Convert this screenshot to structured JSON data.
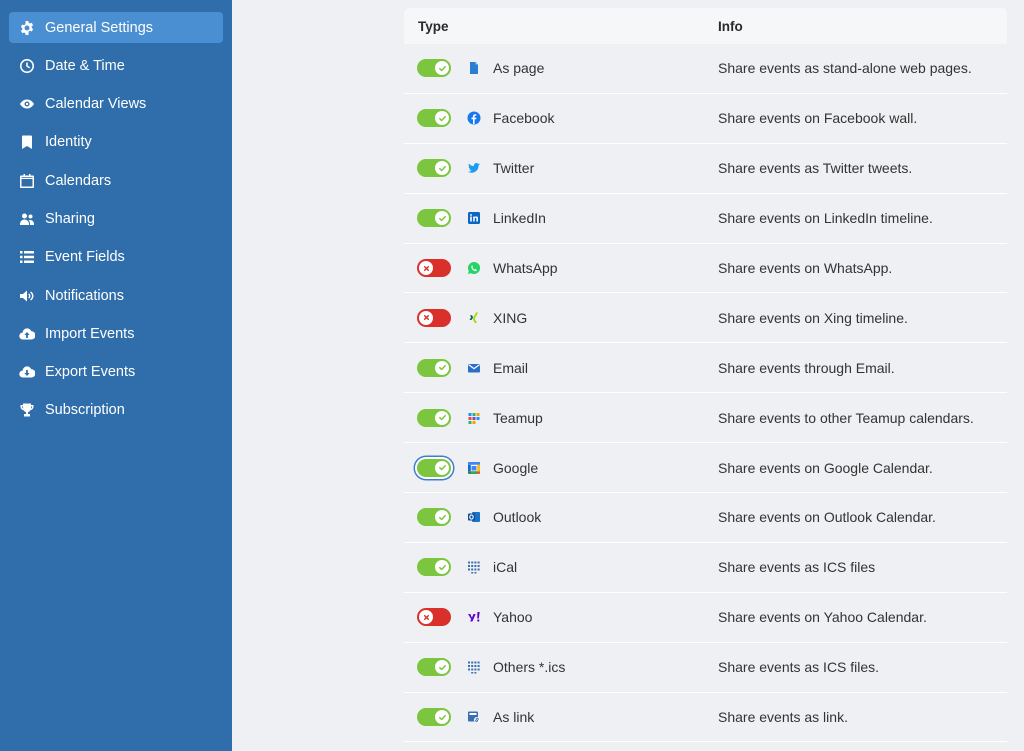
{
  "sidebar": {
    "items": [
      {
        "label": "General Settings",
        "icon": "gear-icon",
        "active": true
      },
      {
        "label": "Date & Time",
        "icon": "clock-icon"
      },
      {
        "label": "Calendar Views",
        "icon": "eye-icon"
      },
      {
        "label": "Identity",
        "icon": "bookmark-icon"
      },
      {
        "label": "Calendars",
        "icon": "calendar-icon"
      },
      {
        "label": "Sharing",
        "icon": "users-icon"
      },
      {
        "label": "Event Fields",
        "icon": "list-icon"
      },
      {
        "label": "Notifications",
        "icon": "speaker-icon"
      },
      {
        "label": "Import Events",
        "icon": "cloud-upload-icon"
      },
      {
        "label": "Export Events",
        "icon": "cloud-download-icon"
      },
      {
        "label": "Subscription",
        "icon": "trophy-icon"
      }
    ]
  },
  "table": {
    "headers": {
      "type": "Type",
      "info": "Info"
    },
    "rows": [
      {
        "name": "As page",
        "info": "Share events as stand-alone web pages.",
        "enabled": true,
        "icon": "page-icon"
      },
      {
        "name": "Facebook",
        "info": "Share events on Facebook wall.",
        "enabled": true,
        "icon": "facebook-icon"
      },
      {
        "name": "Twitter",
        "info": "Share events as Twitter tweets.",
        "enabled": true,
        "icon": "twitter-icon"
      },
      {
        "name": "LinkedIn",
        "info": "Share events on LinkedIn timeline.",
        "enabled": true,
        "icon": "linkedin-icon"
      },
      {
        "name": "WhatsApp",
        "info": "Share events on WhatsApp.",
        "enabled": false,
        "icon": "whatsapp-icon"
      },
      {
        "name": "XING",
        "info": "Share events on Xing timeline.",
        "enabled": false,
        "icon": "xing-icon"
      },
      {
        "name": "Email",
        "info": "Share events through Email.",
        "enabled": true,
        "icon": "email-icon"
      },
      {
        "name": "Teamup",
        "info": "Share events to other Teamup calendars.",
        "enabled": true,
        "icon": "teamup-icon"
      },
      {
        "name": "Google",
        "info": "Share events on Google Calendar.",
        "enabled": true,
        "focused": true,
        "icon": "google-calendar-icon"
      },
      {
        "name": "Outlook",
        "info": "Share events on Outlook Calendar.",
        "enabled": true,
        "icon": "outlook-icon"
      },
      {
        "name": "iCal",
        "info": "Share events as ICS files",
        "enabled": true,
        "icon": "ical-icon"
      },
      {
        "name": "Yahoo",
        "info": "Share events on Yahoo Calendar.",
        "enabled": false,
        "icon": "yahoo-icon"
      },
      {
        "name": "Others *.ics",
        "info": "Share events as ICS files.",
        "enabled": true,
        "icon": "ics-icon"
      },
      {
        "name": "As link",
        "info": "Share events as link.",
        "enabled": true,
        "icon": "link-icon"
      }
    ]
  },
  "colors": {
    "sidebar_bg": "#2f6eab",
    "sidebar_active": "#4a8fd1",
    "toggle_on": "#7cc53f",
    "toggle_off": "#d9302c",
    "focus_ring": "#3d7ed2"
  }
}
